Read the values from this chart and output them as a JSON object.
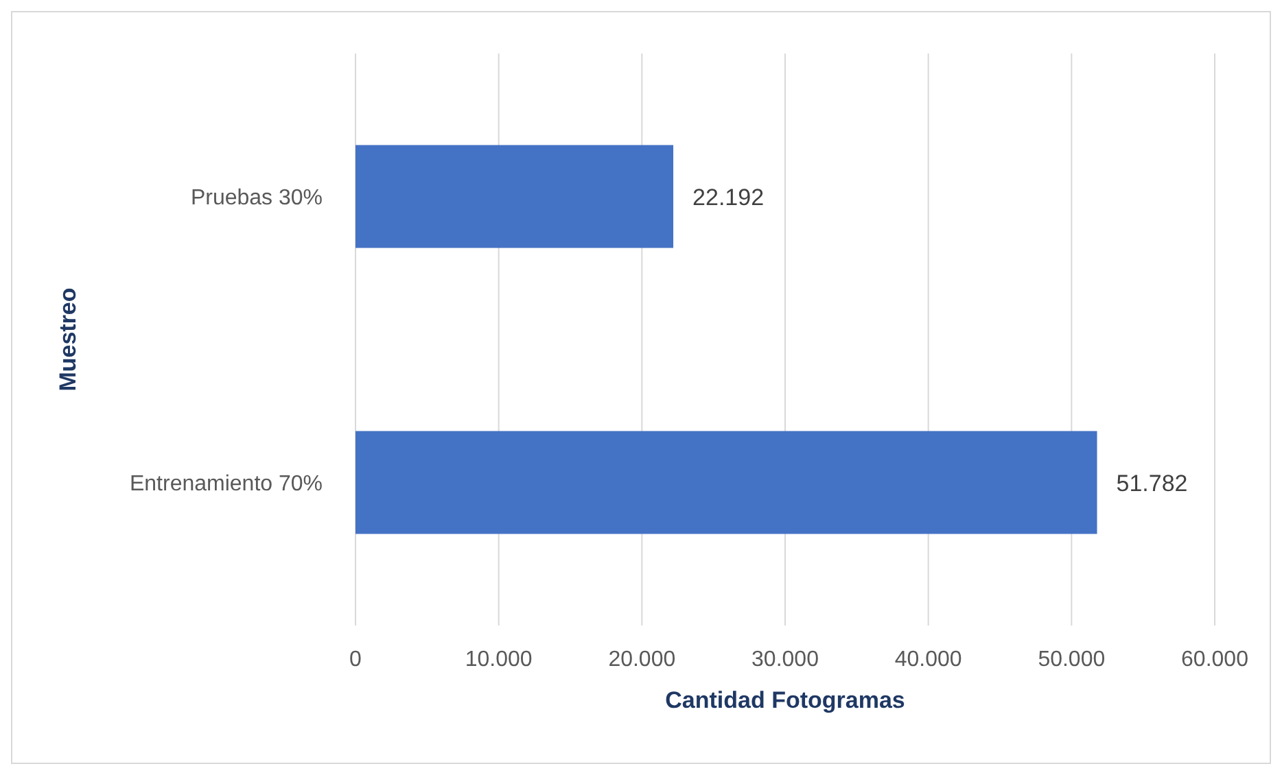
{
  "chart_data": {
    "type": "bar",
    "orientation": "horizontal",
    "xlabel": "Cantidad  Fotogramas",
    "ylabel": "Muestreo",
    "categories": [
      "Pruebas 30%",
      "Entrenamiento 70%"
    ],
    "values": [
      22192,
      51782
    ],
    "value_labels": [
      "22.192",
      "51.782"
    ],
    "color": "#4472c4",
    "xlim": [
      0,
      60000
    ],
    "xticks": [
      0,
      {
        "value": 10000,
        "label": "10.000"
      },
      {
        "value": 20000,
        "label": "20.000"
      },
      {
        "value": 30000,
        "label": "30.000"
      },
      {
        "value": 40000,
        "label": "40.000"
      },
      {
        "value": 50000,
        "label": "50.000"
      },
      {
        "value": 60000,
        "label": "60.000"
      }
    ],
    "grid": "x"
  }
}
